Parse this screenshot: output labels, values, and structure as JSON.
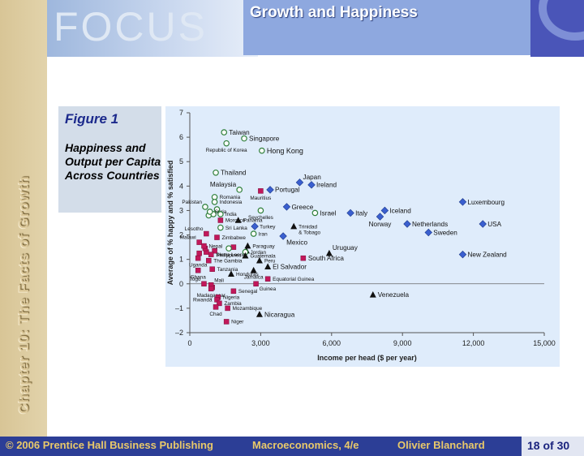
{
  "slide": {
    "banner_logo": "FOCUS",
    "title": "Growth and Happiness",
    "side_title": "Chapter 10: The Facts of Growth",
    "figure_label": "Figure 1",
    "figure_caption": "Happiness and Output per Capita Across Countries"
  },
  "footer": {
    "copyright": "© 2006 Prentice Hall Business Publishing",
    "book": "Macroeconomics, 4/e",
    "author": "Olivier Blanchard",
    "page": "18 of 30"
  },
  "chart_data": {
    "type": "scatter",
    "xlabel": "Income per head ($ per year)",
    "ylabel": "Average of % happy and % satisfied",
    "xlim": [
      0,
      15000
    ],
    "ylim": [
      -2,
      7
    ],
    "xticks": [
      0,
      3000,
      6000,
      9000,
      12000,
      15000
    ],
    "xtick_labels": [
      "0",
      "3,000",
      "6,000",
      "9,000",
      "12,000",
      "15,000"
    ],
    "yticks": [
      -2,
      -1,
      0,
      1,
      2,
      3,
      4,
      5,
      6,
      7
    ],
    "ytick_labels": [
      "–2",
      "–1",
      "0",
      "1",
      "2",
      "3",
      "4",
      "5",
      "6",
      "7"
    ],
    "grid": false,
    "colors": {
      "circle": "#2f7f3a",
      "diamond": "#3a5fcf",
      "square": "#c2185b",
      "triangle": "#111111"
    },
    "points": [
      {
        "label": "Taiwan",
        "x": 1450,
        "y": 6.2,
        "m": "circle",
        "lp": "r",
        "ls": "m"
      },
      {
        "label": "Singapore",
        "x": 2300,
        "y": 5.95,
        "m": "circle",
        "lp": "r",
        "ls": "m"
      },
      {
        "label": "Republic of Korea",
        "x": 1550,
        "y": 5.75,
        "m": "circle",
        "lp": "b",
        "ls": "s"
      },
      {
        "label": "Hong Kong",
        "x": 3050,
        "y": 5.45,
        "m": "circle",
        "lp": "r",
        "ls": "l"
      },
      {
        "label": "Thailand",
        "x": 1100,
        "y": 4.55,
        "m": "circle",
        "lp": "r",
        "ls": "m"
      },
      {
        "label": "Malaysia",
        "x": 2100,
        "y": 3.85,
        "m": "circle",
        "lp": "tl",
        "ls": "m"
      },
      {
        "label": "Japan",
        "x": 4650,
        "y": 4.15,
        "m": "diamond",
        "lp": "tr",
        "ls": "m"
      },
      {
        "label": "Ireland",
        "x": 5150,
        "y": 4.05,
        "m": "diamond",
        "lp": "r",
        "ls": "m"
      },
      {
        "label": "Portugal",
        "x": 3400,
        "y": 3.85,
        "m": "diamond",
        "lp": "r",
        "ls": "m"
      },
      {
        "label": "Mauritius",
        "x": 3000,
        "y": 3.8,
        "m": "square",
        "lp": "b",
        "ls": "s"
      },
      {
        "label": "Romania",
        "x": 1050,
        "y": 3.55,
        "m": "circle",
        "lp": "r",
        "ls": "s"
      },
      {
        "label": "Indonesia",
        "x": 1050,
        "y": 3.35,
        "m": "circle",
        "lp": "r",
        "ls": "s"
      },
      {
        "label": "Pakistan",
        "x": 650,
        "y": 3.15,
        "m": "circle",
        "lp": "tl",
        "ls": "s"
      },
      {
        "label": "Syria",
        "x": 850,
        "y": 2.95,
        "m": "circle",
        "lp": "r",
        "ls": "s"
      },
      {
        "label": "India",
        "x": 1300,
        "y": 2.85,
        "m": "circle",
        "lp": "r",
        "ls": "s"
      },
      {
        "label": "Seychelles",
        "x": 3000,
        "y": 3.0,
        "m": "circle",
        "lp": "b",
        "ls": "s"
      },
      {
        "label": "Greece",
        "x": 4100,
        "y": 3.15,
        "m": "diamond",
        "lp": "r",
        "ls": "m"
      },
      {
        "label": "Israel",
        "x": 5300,
        "y": 2.9,
        "m": "circle",
        "lp": "r",
        "ls": "m"
      },
      {
        "label": "Italy",
        "x": 6800,
        "y": 2.9,
        "m": "diamond",
        "lp": "r",
        "ls": "m"
      },
      {
        "label": "Iceland",
        "x": 8250,
        "y": 3.0,
        "m": "diamond",
        "lp": "r",
        "ls": "m"
      },
      {
        "label": "Norway",
        "x": 8050,
        "y": 2.75,
        "m": "diamond",
        "lp": "b",
        "ls": "m"
      },
      {
        "label": "Luxembourg",
        "x": 11550,
        "y": 3.35,
        "m": "diamond",
        "lp": "r",
        "ls": "m"
      },
      {
        "label": "USA",
        "x": 12400,
        "y": 2.45,
        "m": "diamond",
        "lp": "r",
        "ls": "m"
      },
      {
        "label": "Netherlands",
        "x": 9200,
        "y": 2.45,
        "m": "diamond",
        "lp": "r",
        "ls": "m"
      },
      {
        "label": "Sweden",
        "x": 10100,
        "y": 2.1,
        "m": "diamond",
        "lp": "r",
        "ls": "m"
      },
      {
        "label": "Morocco",
        "x": 1300,
        "y": 2.6,
        "m": "square",
        "lp": "r",
        "ls": "s"
      },
      {
        "label": "Panama",
        "x": 2050,
        "y": 2.6,
        "m": "triangle",
        "lp": "r",
        "ls": "s"
      },
      {
        "label": "Sri Lanka",
        "x": 1300,
        "y": 2.3,
        "m": "circle",
        "lp": "r",
        "ls": "s"
      },
      {
        "label": "Turkey",
        "x": 2750,
        "y": 2.35,
        "m": "diamond",
        "lp": "r",
        "ls": "s"
      },
      {
        "label": "Iran",
        "x": 2700,
        "y": 2.05,
        "m": "circle",
        "lp": "r",
        "ls": "s"
      },
      {
        "label": "Trinidad & Tobago",
        "x": 4400,
        "y": 2.35,
        "m": "triangle",
        "lp": "r",
        "ls": "s"
      },
      {
        "label": "Mexico",
        "x": 3950,
        "y": 1.95,
        "m": "diamond",
        "lp": "br",
        "ls": "m"
      },
      {
        "label": "Lesotho",
        "x": 700,
        "y": 2.05,
        "m": "square",
        "lp": "tl",
        "ls": "s"
      },
      {
        "label": "Zimbabwe",
        "x": 1150,
        "y": 1.9,
        "m": "square",
        "lp": "r",
        "ls": "s"
      },
      {
        "label": "Malawi",
        "x": 400,
        "y": 1.7,
        "m": "square",
        "lp": "tl",
        "ls": "s"
      },
      {
        "label": "Paraguay",
        "x": 2450,
        "y": 1.55,
        "m": "triangle",
        "lp": "r",
        "ls": "s"
      },
      {
        "label": "Nepal",
        "x": 600,
        "y": 1.55,
        "m": "square",
        "lp": "r",
        "ls": "s"
      },
      {
        "label": "Philippines",
        "x": 1650,
        "y": 1.45,
        "m": "circle",
        "lp": "b",
        "ls": "s"
      },
      {
        "label": "Jordan",
        "x": 2350,
        "y": 1.3,
        "m": "circle",
        "lp": "r",
        "ls": "s"
      },
      {
        "label": "Sierra Leone",
        "x": 900,
        "y": 1.2,
        "m": "square",
        "lp": "r",
        "ls": "s"
      },
      {
        "label": "Guatemala",
        "x": 2350,
        "y": 1.15,
        "m": "triangle",
        "lp": "r",
        "ls": "s"
      },
      {
        "label": "Uruguay",
        "x": 5900,
        "y": 1.25,
        "m": "triangle",
        "lp": "tr",
        "ls": "m"
      },
      {
        "label": "South Africa",
        "x": 4800,
        "y": 1.05,
        "m": "square",
        "lp": "r",
        "ls": "m"
      },
      {
        "label": "New Zealand",
        "x": 11550,
        "y": 1.2,
        "m": "diamond",
        "lp": "r",
        "ls": "m"
      },
      {
        "label": "Uganda",
        "x": 350,
        "y": 1.05,
        "m": "square",
        "lp": "b",
        "ls": "s"
      },
      {
        "label": "The Gambia",
        "x": 800,
        "y": 0.95,
        "m": "square",
        "lp": "r",
        "ls": "s"
      },
      {
        "label": "Peru",
        "x": 2950,
        "y": 0.95,
        "m": "triangle",
        "lp": "r",
        "ls": "s"
      },
      {
        "label": "El Salvador",
        "x": 3300,
        "y": 0.7,
        "m": "triangle",
        "lp": "r",
        "ls": "m"
      },
      {
        "label": "Tanzania",
        "x": 950,
        "y": 0.6,
        "m": "square",
        "lp": "r",
        "ls": "s"
      },
      {
        "label": "Jamaica",
        "x": 2700,
        "y": 0.55,
        "m": "triangle",
        "lp": "b",
        "ls": "s"
      },
      {
        "label": "Ghana",
        "x": 350,
        "y": 0.55,
        "m": "square",
        "lp": "b",
        "ls": "s"
      },
      {
        "label": "Honduras",
        "x": 1750,
        "y": 0.4,
        "m": "triangle",
        "lp": "r",
        "ls": "s"
      },
      {
        "label": "Equatorial Guinea",
        "x": 3300,
        "y": 0.2,
        "m": "square",
        "lp": "r",
        "ls": "s"
      },
      {
        "label": "Togo",
        "x": 600,
        "y": 0.0,
        "m": "square",
        "lp": "tl",
        "ls": "s"
      },
      {
        "label": "Mali",
        "x": 900,
        "y": -0.05,
        "m": "square",
        "lp": "tr",
        "ls": "s"
      },
      {
        "label": "Guinea",
        "x": 2800,
        "y": 0.0,
        "m": "square",
        "lp": "br",
        "ls": "s"
      },
      {
        "label": "Madagascar",
        "x": 900,
        "y": -0.2,
        "m": "square",
        "lp": "b",
        "ls": "s"
      },
      {
        "label": "Senegal",
        "x": 1850,
        "y": -0.3,
        "m": "square",
        "lp": "r",
        "ls": "s"
      },
      {
        "label": "Nigeria",
        "x": 1200,
        "y": -0.55,
        "m": "square",
        "lp": "r",
        "ls": "s"
      },
      {
        "label": "Rwanda",
        "x": 1150,
        "y": -0.65,
        "m": "square",
        "lp": "l",
        "ls": "s"
      },
      {
        "label": "Zambia",
        "x": 1250,
        "y": -0.8,
        "m": "square",
        "lp": "r",
        "ls": "s"
      },
      {
        "label": "Chad",
        "x": 1100,
        "y": -0.95,
        "m": "square",
        "lp": "b",
        "ls": "s"
      },
      {
        "label": "Mozambique",
        "x": 1600,
        "y": -1.0,
        "m": "square",
        "lp": "r",
        "ls": "s"
      },
      {
        "label": "Nicaragua",
        "x": 2950,
        "y": -1.25,
        "m": "triangle",
        "lp": "r",
        "ls": "m"
      },
      {
        "label": "Niger",
        "x": 1550,
        "y": -1.55,
        "m": "square",
        "lp": "r",
        "ls": "s"
      },
      {
        "label": "Venezuela",
        "x": 7750,
        "y": -0.45,
        "m": "triangle",
        "lp": "r",
        "ls": "m"
      }
    ],
    "extra_points": [
      {
        "x": 800,
        "y": 2.8,
        "m": "circle"
      },
      {
        "x": 1000,
        "y": 2.85,
        "m": "circle"
      },
      {
        "x": 1150,
        "y": 3.05,
        "m": "circle"
      },
      {
        "x": 400,
        "y": 1.25,
        "m": "square"
      },
      {
        "x": 700,
        "y": 1.3,
        "m": "square"
      },
      {
        "x": 1050,
        "y": 1.35,
        "m": "square"
      },
      {
        "x": 1850,
        "y": 1.5,
        "m": "square"
      },
      {
        "x": 2400,
        "y": 1.35,
        "m": "triangle"
      },
      {
        "x": 650,
        "y": 1.45,
        "m": "square"
      },
      {
        "x": 950,
        "y": -0.15,
        "m": "square"
      }
    ]
  }
}
